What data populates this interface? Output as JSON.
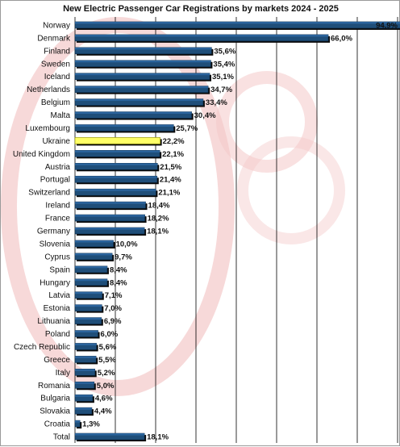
{
  "chart_data": {
    "type": "bar",
    "orientation": "horizontal",
    "title": "New Electric Passenger Car Registrations by markets 2024 - 2025",
    "xlabel": "",
    "ylabel": "",
    "xlim": [
      0,
      95
    ],
    "grid": "vertical",
    "legend": "none",
    "categories": [
      "Norway",
      "Denmark",
      "Finland",
      "Sweden",
      "Iceland",
      "Netherlands",
      "Belgium",
      "Malta",
      "Luxembourg",
      "Ukraine",
      "United Kingdom",
      "Austria",
      "Portugal",
      "Switzerland",
      "Ireland",
      "France",
      "Germany",
      "Slovenia",
      "Cyprus",
      "Spain",
      "Hungary",
      "Latvia",
      "Estonia",
      "Lithuania",
      "Poland",
      "Czech Republic",
      "Greece",
      "Italy",
      "Romania",
      "Bulgaria",
      "Slovakia",
      "Croatia",
      "Total"
    ],
    "values": [
      94.9,
      66.0,
      35.6,
      35.4,
      35.1,
      34.7,
      33.4,
      30.4,
      25.7,
      22.2,
      22.1,
      21.5,
      21.4,
      21.1,
      18.4,
      18.2,
      18.1,
      10.0,
      9.7,
      8.4,
      8.4,
      7.1,
      7.0,
      6.9,
      6.0,
      5.6,
      5.5,
      5.2,
      5.0,
      4.6,
      4.4,
      1.3,
      18.1
    ],
    "labels": [
      "94,9%",
      "66,0%",
      "35,6%",
      "35,4%",
      "35,1%",
      "34,7%",
      "33,4%",
      "30,4%",
      "25,7%",
      "22,2%",
      "22,1%",
      "21,5%",
      "21,4%",
      "21,1%",
      "18,4%",
      "18,2%",
      "18,1%",
      "10,0%",
      "9,7%",
      "8,4%",
      "8,4%",
      "7,1%",
      "7,0%",
      "6,9%",
      "6,0%",
      "5,6%",
      "5,5%",
      "5,2%",
      "5,0%",
      "4,6%",
      "4,4%",
      "1,3%",
      "18,1%"
    ],
    "highlight": "Ukraine",
    "colors": {
      "bar": "#1f4e79",
      "bar_light": "#2e6aa6",
      "highlight": "#ffff66",
      "grid": "#000000"
    }
  }
}
